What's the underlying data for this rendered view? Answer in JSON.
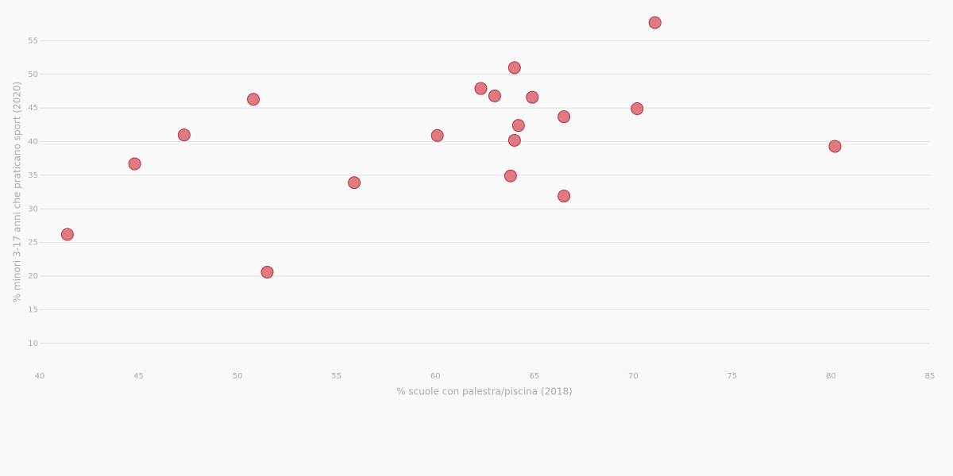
{
  "chart_data": {
    "type": "scatter",
    "x_label": "% scuole con palestra/piscina (2018)",
    "y_label": "% minori 3-17 anni che praticano sport (2020)",
    "x": [
      41.4,
      44.8,
      47.3,
      50.8,
      51.5,
      55.9,
      60.1,
      62.3,
      63.0,
      64.0,
      64.9,
      64.2,
      64.0,
      63.8,
      66.5,
      66.5,
      70.2,
      71.1,
      80.2
    ],
    "y": [
      26.2,
      36.7,
      41.0,
      46.3,
      20.6,
      33.9,
      40.9,
      47.9,
      46.8,
      51.0,
      46.6,
      42.4,
      40.2,
      34.9,
      43.7,
      31.9,
      44.9,
      57.7,
      39.3
    ],
    "color": "#e07a80",
    "edge_color": "#b33040",
    "xlim": [
      40,
      85
    ],
    "xticks": [
      40,
      45,
      50,
      55,
      60,
      65,
      70,
      75,
      80,
      85
    ],
    "ylim": [
      7.5,
      60
    ],
    "yticks": [
      10,
      15,
      20,
      25,
      30,
      35,
      40,
      45,
      50,
      55
    ],
    "grid": true
  }
}
